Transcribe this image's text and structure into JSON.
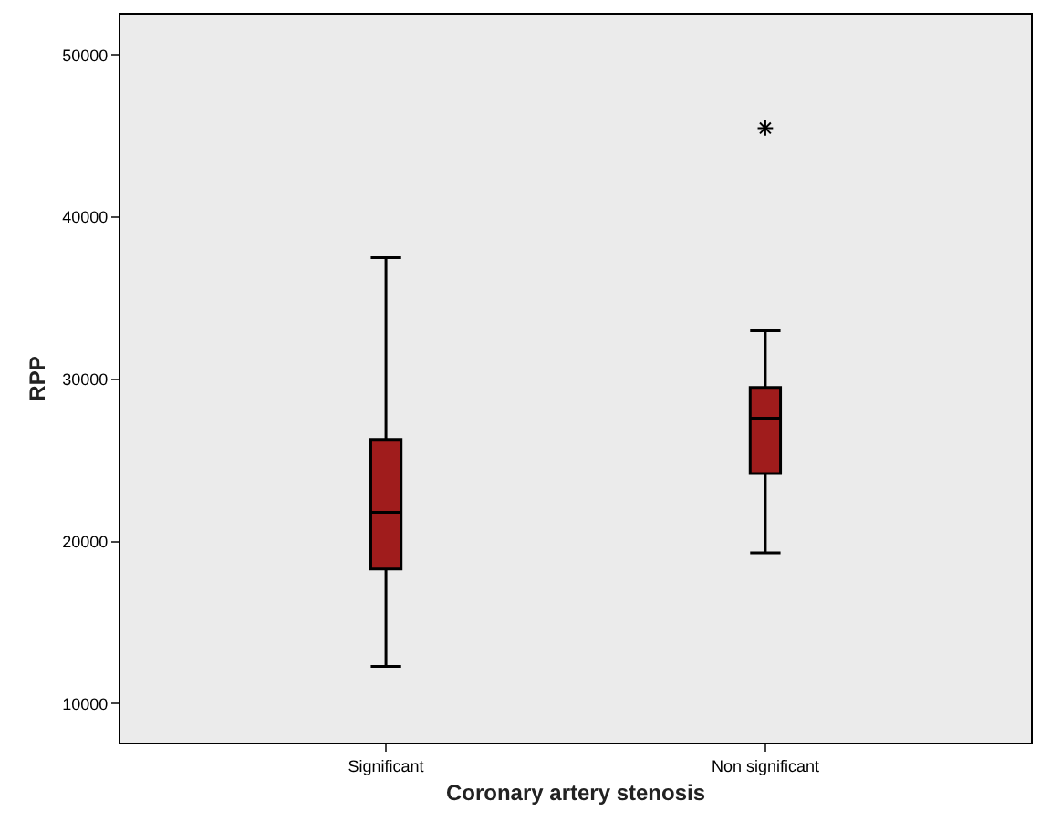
{
  "chart_data": {
    "type": "box",
    "xlabel": "Coronary artery stenosis",
    "ylabel": "RPP",
    "categories": [
      "Significant",
      "Non significant"
    ],
    "boxes": [
      {
        "low": 12300,
        "q1": 18300,
        "median": 21800,
        "q3": 26300,
        "high": 37500
      },
      {
        "low": 19300,
        "q1": 24200,
        "median": 27600,
        "q3": 29500,
        "high": 33000,
        "outliers": [
          45500
        ]
      }
    ],
    "color": "#a01c1c",
    "marker": "star",
    "ylim": [
      7600,
      52500
    ],
    "yticks": [
      10000,
      20000,
      30000,
      40000,
      50000
    ]
  }
}
